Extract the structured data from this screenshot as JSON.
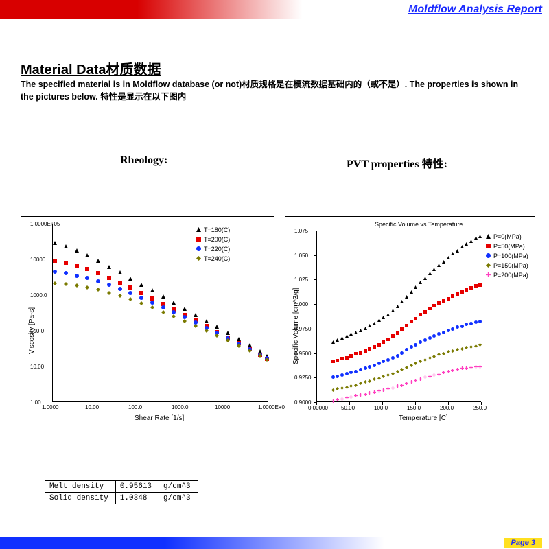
{
  "header": {
    "title": "Moldflow Analysis Report"
  },
  "section": {
    "title": "Material Data材质数据",
    "desc": "The specified material is in Moldflow database (or not)材质规格是在模流数据基础内的（或不是）. The properties is shown in the pictures below. 特性是显示在以下图内"
  },
  "chart_labels": {
    "left": "Rheology:",
    "right": "PVT properties 特性:"
  },
  "rheology": {
    "type": "scatter-loglog",
    "xlabel": "Shear Rate [1/s]",
    "ylabel": "Viscosity [Pa-s]",
    "xticks": [
      "1.0000",
      "10.00",
      "100.0",
      "1000.0",
      "10000",
      "1.0000E+05"
    ],
    "yticks": [
      "1.00",
      "10.00",
      "100.0",
      "1000.0",
      "10000",
      "1.0000E+05"
    ],
    "xlim_log": [
      0,
      5
    ],
    "ylim_log": [
      0,
      5
    ],
    "series": [
      {
        "label": "T=180(C)",
        "color": "#000000",
        "marker": "triangle",
        "x_log": [
          0.05,
          0.3,
          0.55,
          0.8,
          1.05,
          1.3,
          1.55,
          1.8,
          2.05,
          2.3,
          2.55,
          2.8,
          3.05,
          3.3,
          3.55,
          3.8,
          4.05,
          4.3,
          4.55,
          4.8,
          4.95
        ],
        "y_log": [
          4.62,
          4.52,
          4.4,
          4.26,
          4.11,
          3.95,
          3.79,
          3.62,
          3.45,
          3.28,
          3.11,
          2.94,
          2.77,
          2.6,
          2.43,
          2.26,
          2.09,
          1.92,
          1.75,
          1.58,
          1.45
        ]
      },
      {
        "label": "T=200(C)",
        "color": "#e60000",
        "marker": "square",
        "x_log": [
          0.05,
          0.3,
          0.55,
          0.8,
          1.05,
          1.3,
          1.55,
          1.8,
          2.05,
          2.3,
          2.55,
          2.8,
          3.05,
          3.3,
          3.55,
          3.8,
          4.05,
          4.3,
          4.55,
          4.8,
          4.95
        ],
        "y_log": [
          4.12,
          4.06,
          3.98,
          3.88,
          3.77,
          3.64,
          3.5,
          3.36,
          3.21,
          3.06,
          2.91,
          2.75,
          2.6,
          2.44,
          2.28,
          2.12,
          1.96,
          1.8,
          1.64,
          1.48,
          1.36
        ]
      },
      {
        "label": "T=220(C)",
        "color": "#1030ff",
        "marker": "circle",
        "x_log": [
          0.05,
          0.3,
          0.55,
          0.8,
          1.05,
          1.3,
          1.55,
          1.8,
          2.05,
          2.3,
          2.55,
          2.8,
          3.05,
          3.3,
          3.55,
          3.8,
          4.05,
          4.3,
          4.55,
          4.8,
          4.95
        ],
        "y_log": [
          3.8,
          3.76,
          3.7,
          3.63,
          3.54,
          3.44,
          3.33,
          3.21,
          3.08,
          2.95,
          2.81,
          2.67,
          2.53,
          2.38,
          2.24,
          2.09,
          1.94,
          1.79,
          1.64,
          1.49,
          1.38
        ]
      },
      {
        "label": "T=240(C)",
        "color": "#7a7a00",
        "marker": "diamond",
        "x_log": [
          0.05,
          0.3,
          0.55,
          0.8,
          1.05,
          1.3,
          1.55,
          1.8,
          2.05,
          2.3,
          2.55,
          2.8,
          3.05,
          3.3,
          3.55,
          3.8,
          4.05,
          4.3,
          4.55,
          4.8,
          4.95
        ],
        "y_log": [
          3.48,
          3.46,
          3.42,
          3.37,
          3.3,
          3.22,
          3.13,
          3.03,
          2.92,
          2.8,
          2.68,
          2.55,
          2.42,
          2.29,
          2.15,
          2.02,
          1.88,
          1.74,
          1.6,
          1.46,
          1.35
        ]
      }
    ]
  },
  "pvt": {
    "type": "scatter-linear",
    "title": "Specific Volume vs Temperature",
    "xlabel": "Temperature [C]",
    "ylabel": "Specific Volume [cm^3/g]",
    "xticks_vals": [
      0,
      50,
      100,
      150,
      200,
      250
    ],
    "xticks": [
      "0.00000",
      "50.00",
      "100.0",
      "150.0",
      "200.0",
      "250.0"
    ],
    "yticks_vals": [
      0.9,
      0.925,
      0.95,
      0.975,
      1.0,
      1.025,
      1.05,
      1.075
    ],
    "yticks": [
      "0.9000",
      "0.9250",
      "0.9500",
      "0.9750",
      "1.000",
      "1.025",
      "1.050",
      "1.075"
    ],
    "xlim": [
      0,
      250
    ],
    "ylim": [
      0.9,
      1.075
    ],
    "series": [
      {
        "label": "P=0(MPa)",
        "color": "#000000",
        "marker": "triangle",
        "x": [
          25,
          32,
          39,
          46,
          53,
          60,
          67,
          74,
          81,
          88,
          95,
          102,
          109,
          116,
          123,
          130,
          137,
          144,
          151,
          158,
          165,
          172,
          179,
          186,
          193,
          200,
          207,
          214,
          221,
          228,
          235,
          242,
          248
        ],
        "y": [
          0.967,
          0.969,
          0.971,
          0.973,
          0.975,
          0.977,
          0.979,
          0.981,
          0.984,
          0.986,
          0.989,
          0.992,
          0.995,
          0.999,
          1.003,
          1.008,
          1.013,
          1.018,
          1.023,
          1.028,
          1.032,
          1.037,
          1.041,
          1.045,
          1.049,
          1.053,
          1.057,
          1.06,
          1.064,
          1.067,
          1.07,
          1.073,
          1.075
        ]
      },
      {
        "label": "P=50(MPa)",
        "color": "#e60000",
        "marker": "square",
        "x": [
          25,
          32,
          39,
          46,
          53,
          60,
          67,
          74,
          81,
          88,
          95,
          102,
          109,
          116,
          123,
          130,
          137,
          144,
          151,
          158,
          165,
          172,
          179,
          186,
          193,
          200,
          207,
          214,
          221,
          228,
          235,
          242,
          248
        ],
        "y": [
          0.947,
          0.948,
          0.95,
          0.951,
          0.953,
          0.955,
          0.956,
          0.958,
          0.96,
          0.962,
          0.964,
          0.967,
          0.97,
          0.973,
          0.976,
          0.98,
          0.984,
          0.988,
          0.991,
          0.995,
          0.998,
          1.001,
          1.004,
          1.007,
          1.009,
          1.011,
          1.014,
          1.016,
          1.018,
          1.02,
          1.022,
          1.024,
          1.025
        ]
      },
      {
        "label": "P=100(MPa)",
        "color": "#1030ff",
        "marker": "circle",
        "x": [
          25,
          32,
          39,
          46,
          53,
          60,
          67,
          74,
          81,
          88,
          95,
          102,
          109,
          116,
          123,
          130,
          137,
          144,
          151,
          158,
          165,
          172,
          179,
          186,
          193,
          200,
          207,
          214,
          221,
          228,
          235,
          242,
          248
        ],
        "y": [
          0.931,
          0.932,
          0.933,
          0.935,
          0.936,
          0.937,
          0.939,
          0.94,
          0.942,
          0.943,
          0.945,
          0.947,
          0.949,
          0.951,
          0.953,
          0.956,
          0.959,
          0.962,
          0.964,
          0.967,
          0.969,
          0.971,
          0.973,
          0.975,
          0.977,
          0.979,
          0.98,
          0.982,
          0.983,
          0.985,
          0.986,
          0.987,
          0.988
        ]
      },
      {
        "label": "P=150(MPa)",
        "color": "#7a7a00",
        "marker": "diamond",
        "x": [
          25,
          32,
          39,
          46,
          53,
          60,
          67,
          74,
          81,
          88,
          95,
          102,
          109,
          116,
          123,
          130,
          137,
          144,
          151,
          158,
          165,
          172,
          179,
          186,
          193,
          200,
          207,
          214,
          221,
          228,
          235,
          242,
          248
        ],
        "y": [
          0.918,
          0.919,
          0.92,
          0.921,
          0.922,
          0.923,
          0.925,
          0.926,
          0.927,
          0.929,
          0.93,
          0.932,
          0.933,
          0.935,
          0.937,
          0.939,
          0.941,
          0.943,
          0.945,
          0.947,
          0.949,
          0.951,
          0.952,
          0.954,
          0.955,
          0.957,
          0.958,
          0.959,
          0.96,
          0.961,
          0.962,
          0.963,
          0.964
        ]
      },
      {
        "label": "P=200(MPa)",
        "color": "#ff40c0",
        "marker": "plus",
        "x": [
          25,
          32,
          39,
          46,
          53,
          60,
          67,
          74,
          81,
          88,
          95,
          102,
          109,
          116,
          123,
          130,
          137,
          144,
          151,
          158,
          165,
          172,
          179,
          186,
          193,
          200,
          207,
          214,
          221,
          228,
          235,
          242,
          248
        ],
        "y": [
          0.907,
          0.908,
          0.909,
          0.91,
          0.911,
          0.912,
          0.913,
          0.914,
          0.915,
          0.916,
          0.917,
          0.918,
          0.919,
          0.92,
          0.922,
          0.923,
          0.925,
          0.926,
          0.928,
          0.929,
          0.931,
          0.932,
          0.933,
          0.934,
          0.936,
          0.937,
          0.938,
          0.939,
          0.94,
          0.94,
          0.941,
          0.942,
          0.942
        ]
      }
    ]
  },
  "density_table": {
    "rows": [
      [
        "Melt density",
        "0.95613",
        "g/cm^3"
      ],
      [
        "Solid density",
        "1.0348",
        "g/cm^3"
      ]
    ]
  },
  "footer": {
    "page": "Page  3"
  }
}
